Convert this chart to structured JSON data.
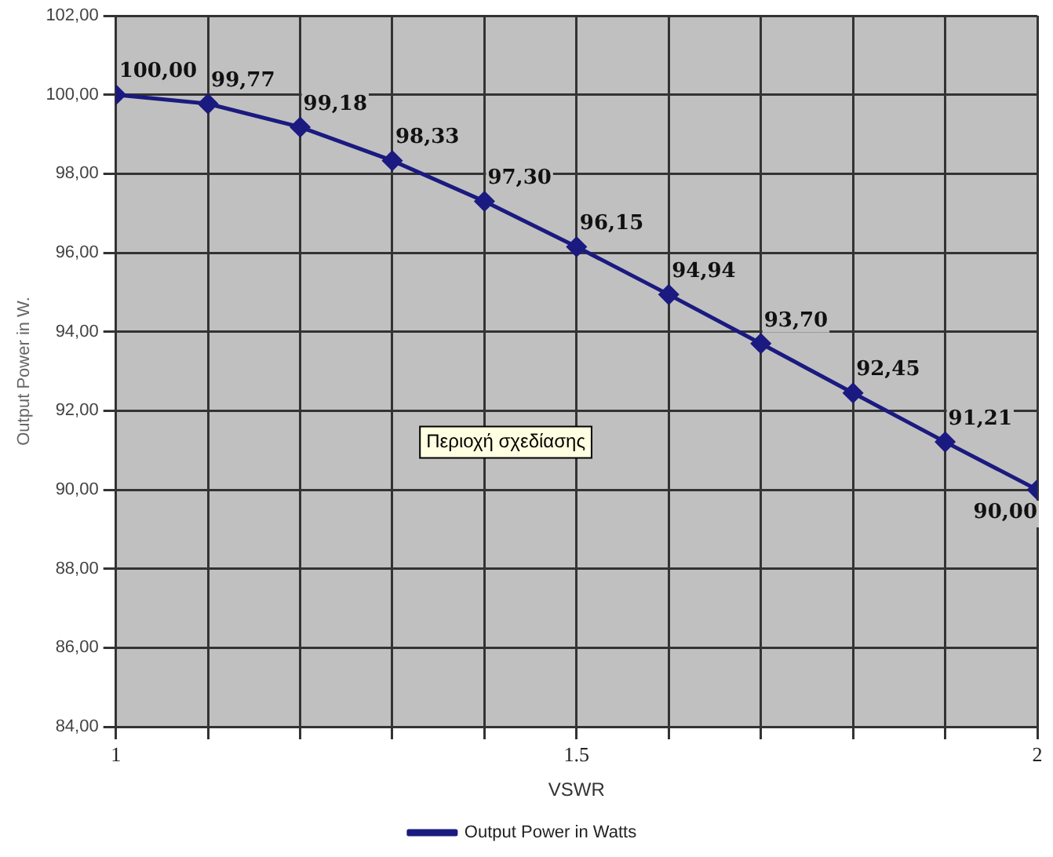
{
  "chart_data": {
    "type": "line",
    "xlabel": "VSWR",
    "ylabel": "Output Power in W.",
    "x": [
      1,
      1.1,
      1.2,
      1.3,
      1.4,
      1.5,
      1.6,
      1.7,
      1.8,
      1.9,
      2
    ],
    "series": [
      {
        "name": "Output Power in Watts",
        "color": "#1a1a80",
        "values": [
          100,
          99.77,
          99.18,
          98.33,
          97.3,
          96.15,
          94.94,
          93.7,
          92.45,
          91.21,
          90
        ],
        "value_labels": [
          "100,00",
          "99,77",
          "99,18",
          "98,33",
          "97,30",
          "96,15",
          "94,94",
          "93,70",
          "92,45",
          "91,21",
          "90,00"
        ]
      }
    ],
    "xlim": [
      1,
      2
    ],
    "xticks": [
      1,
      {
        "value": 1.1,
        "label": null
      },
      {
        "value": 1.2,
        "label": null
      },
      {
        "value": 1.3,
        "label": null
      },
      {
        "value": 1.4,
        "label": null
      },
      1.5,
      {
        "value": 1.6,
        "label": null
      },
      {
        "value": 1.7,
        "label": null
      },
      {
        "value": 1.8,
        "label": null
      },
      {
        "value": 1.9,
        "label": null
      },
      2
    ],
    "ylim": [
      84,
      102
    ],
    "yticks": [
      {
        "value": 84,
        "label": "84,00"
      },
      {
        "value": 86,
        "label": "86,00"
      },
      {
        "value": 88,
        "label": "88,00"
      },
      {
        "value": 90,
        "label": "90,00"
      },
      {
        "value": 92,
        "label": "92,00"
      },
      {
        "value": 94,
        "label": "94,00"
      },
      {
        "value": 96,
        "label": "96,00"
      },
      {
        "value": 98,
        "label": "98,00"
      },
      {
        "value": 100,
        "label": "100,00"
      },
      {
        "value": 102,
        "label": "102,00"
      }
    ],
    "annotations": [
      "Περιοχή σχεδίασης"
    ],
    "grid": true,
    "legend": "bottom",
    "marker": "diamond",
    "line_style": "solid"
  }
}
